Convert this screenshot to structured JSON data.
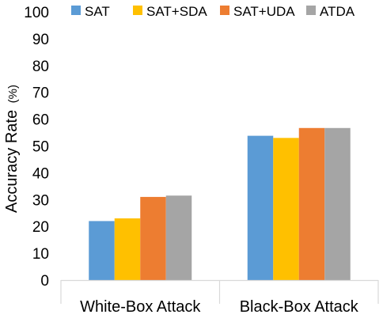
{
  "chart_data": {
    "type": "bar",
    "title": "",
    "xlabel": "",
    "ylabel_main": "Accuracy Rate",
    "ylabel_unit": "(%)",
    "categories": [
      "White-Box Attack",
      "Black-Box Attack"
    ],
    "series": [
      {
        "name": "SAT",
        "color": "#5B9BD5",
        "values": [
          22.0,
          53.8
        ]
      },
      {
        "name": "SAT+SDA",
        "color": "#FFC000",
        "values": [
          23.0,
          53.0
        ]
      },
      {
        "name": "SAT+UDA",
        "color": "#ED7D31",
        "values": [
          31.0,
          56.7
        ]
      },
      {
        "name": "ATDA",
        "color": "#A5A5A5",
        "values": [
          31.5,
          56.7
        ]
      }
    ],
    "ylim": [
      0,
      100
    ],
    "yticks": [
      "0",
      "10",
      "20",
      "30",
      "40",
      "50",
      "60",
      "70",
      "80",
      "90",
      "100"
    ],
    "grid": false,
    "legend_position": "top"
  }
}
